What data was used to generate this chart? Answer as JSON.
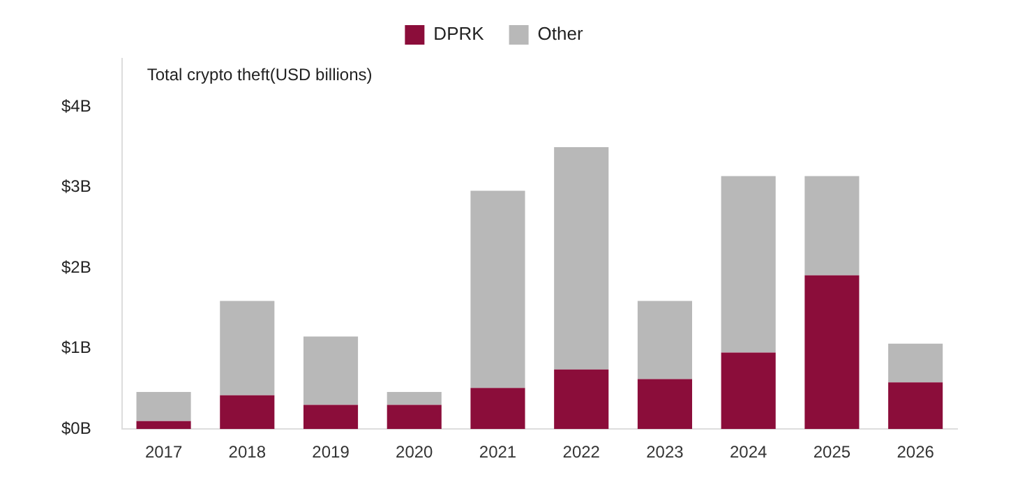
{
  "chart_data": {
    "type": "bar",
    "ylabel": "Total crypto theft(USD billions)",
    "stacked": true,
    "legend": "top",
    "grid": false,
    "categories": [
      "2017",
      "2018",
      "2019",
      "2020",
      "2021",
      "2022",
      "2023",
      "2024",
      "2025",
      "2026"
    ],
    "series": [
      {
        "name": "DPRK",
        "color": "#8b0d3a",
        "values": [
          0.1,
          0.42,
          0.3,
          0.3,
          0.51,
          0.74,
          0.62,
          0.95,
          1.91,
          0.58
        ]
      },
      {
        "name": "Other",
        "color": "#b8b8b8",
        "values": [
          0.36,
          1.17,
          0.85,
          0.16,
          2.45,
          2.76,
          0.97,
          2.19,
          1.23,
          0.48
        ]
      }
    ],
    "ylim": [
      0,
      4.6
    ],
    "yticks": [
      {
        "value": 0,
        "label": "$0B"
      },
      {
        "value": 1,
        "label": "$1B"
      },
      {
        "value": 2,
        "label": "$2B"
      },
      {
        "value": 3,
        "label": "$3B"
      },
      {
        "value": 4,
        "label": "$4B"
      }
    ]
  }
}
